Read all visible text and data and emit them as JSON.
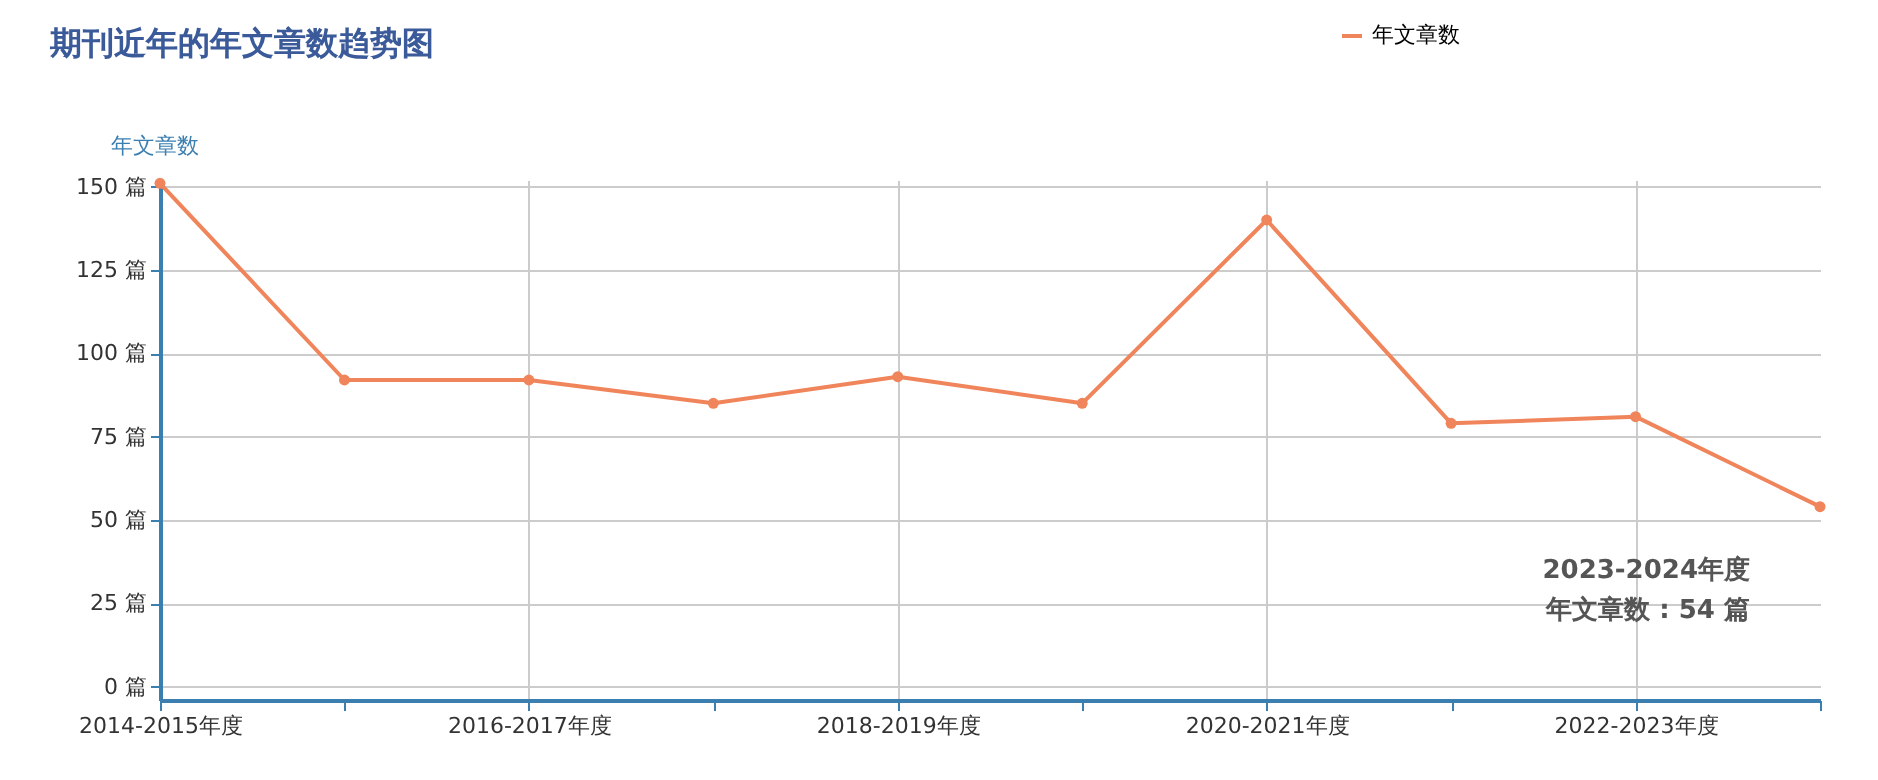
{
  "chart_data": {
    "type": "line",
    "title": "期刊近年的年文章数趋势图",
    "ylabel": "年文章数",
    "categories": [
      "2014-2015年度",
      null,
      "2016-2017年度",
      null,
      "2018-2019年度",
      null,
      "2020-2021年度",
      null,
      "2022-2023年度",
      null
    ],
    "series": [
      {
        "name": "年文章数",
        "color": "#f0845a",
        "values": [
          151,
          92,
          92,
          85,
          93,
          85,
          140,
          79,
          81,
          54
        ]
      }
    ],
    "ylim": [
      -4,
      152
    ],
    "yticks": [
      {
        "value": 0,
        "label": "0 篇"
      },
      {
        "value": 25,
        "label": "25 篇"
      },
      {
        "value": 50,
        "label": "50 篇"
      },
      {
        "value": 75,
        "label": "75 篇"
      },
      {
        "value": 100,
        "label": "100 篇"
      },
      {
        "value": 125,
        "label": "125 篇"
      },
      {
        "value": 150,
        "label": "150 篇"
      }
    ],
    "annotations": [
      "2023-2024年度",
      "年文章数 : 54 篇"
    ],
    "grid": true,
    "legend": "top right",
    "marker": "circle",
    "line_style": "solid"
  }
}
